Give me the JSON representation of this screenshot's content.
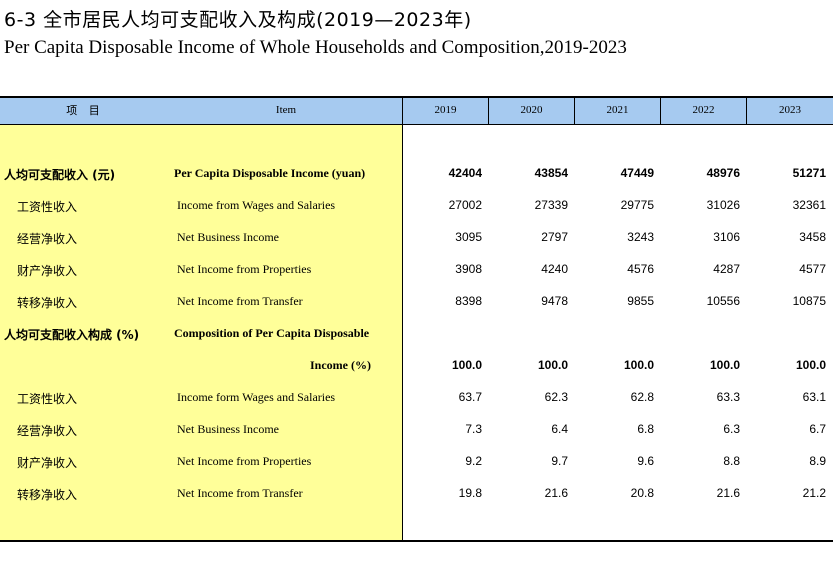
{
  "title_zh": "6-3 全市居民人均可支配收入及构成(2019—2023年)",
  "title_en": "Per Capita Disposable Income of Whole Households and Composition,2019-2023",
  "header": {
    "item_zh": "项 目",
    "item_en": "Item",
    "years": [
      "2019",
      "2020",
      "2021",
      "2022",
      "2023"
    ]
  },
  "rows": [
    {
      "zh": "人均可支配收入 (元)",
      "en": "Per Capita Disposable Income (yuan)",
      "values": [
        "42404",
        "43854",
        "47449",
        "48976",
        "51271"
      ],
      "bold": true,
      "indent": false
    },
    {
      "zh": "工资性收入",
      "en": "Income from Wages and Salaries",
      "values": [
        "27002",
        "27339",
        "29775",
        "31026",
        "32361"
      ],
      "bold": false,
      "indent": true
    },
    {
      "zh": "经营净收入",
      "en": "Net Business Income",
      "values": [
        "3095",
        "2797",
        "3243",
        "3106",
        "3458"
      ],
      "bold": false,
      "indent": true
    },
    {
      "zh": "财产净收入",
      "en": "Net Income from Properties",
      "values": [
        "3908",
        "4240",
        "4576",
        "4287",
        "4577"
      ],
      "bold": false,
      "indent": true
    },
    {
      "zh": "转移净收入",
      "en": "Net Income from Transfer",
      "values": [
        "8398",
        "9478",
        "9855",
        "10556",
        "10875"
      ],
      "bold": false,
      "indent": true
    },
    {
      "zh": "人均可支配收入构成 (%)",
      "en": "Composition of Per Capita Disposable",
      "values": [],
      "bold": true,
      "indent": false
    },
    {
      "zh": "",
      "en": "Income (%)",
      "values": [
        "100.0",
        "100.0",
        "100.0",
        "100.0",
        "100.0"
      ],
      "bold": true,
      "indent": false,
      "en_right": true
    },
    {
      "zh": "工资性收入",
      "en": "Income form Wages and Salaries",
      "values": [
        "63.7",
        "62.3",
        "62.8",
        "63.3",
        "63.1"
      ],
      "bold": false,
      "indent": true
    },
    {
      "zh": "经营净收入",
      "en": "Net Business Income",
      "values": [
        "7.3",
        "6.4",
        "6.8",
        "6.3",
        "6.7"
      ],
      "bold": false,
      "indent": true
    },
    {
      "zh": "财产净收入",
      "en": "Net Income from Properties",
      "values": [
        "9.2",
        "9.7",
        "9.6",
        "8.8",
        "8.9"
      ],
      "bold": false,
      "indent": true
    },
    {
      "zh": "转移净收入",
      "en": "Net Income from Transfer",
      "values": [
        "19.8",
        "21.6",
        "20.8",
        "21.6",
        "21.2"
      ],
      "bold": false,
      "indent": true
    }
  ]
}
